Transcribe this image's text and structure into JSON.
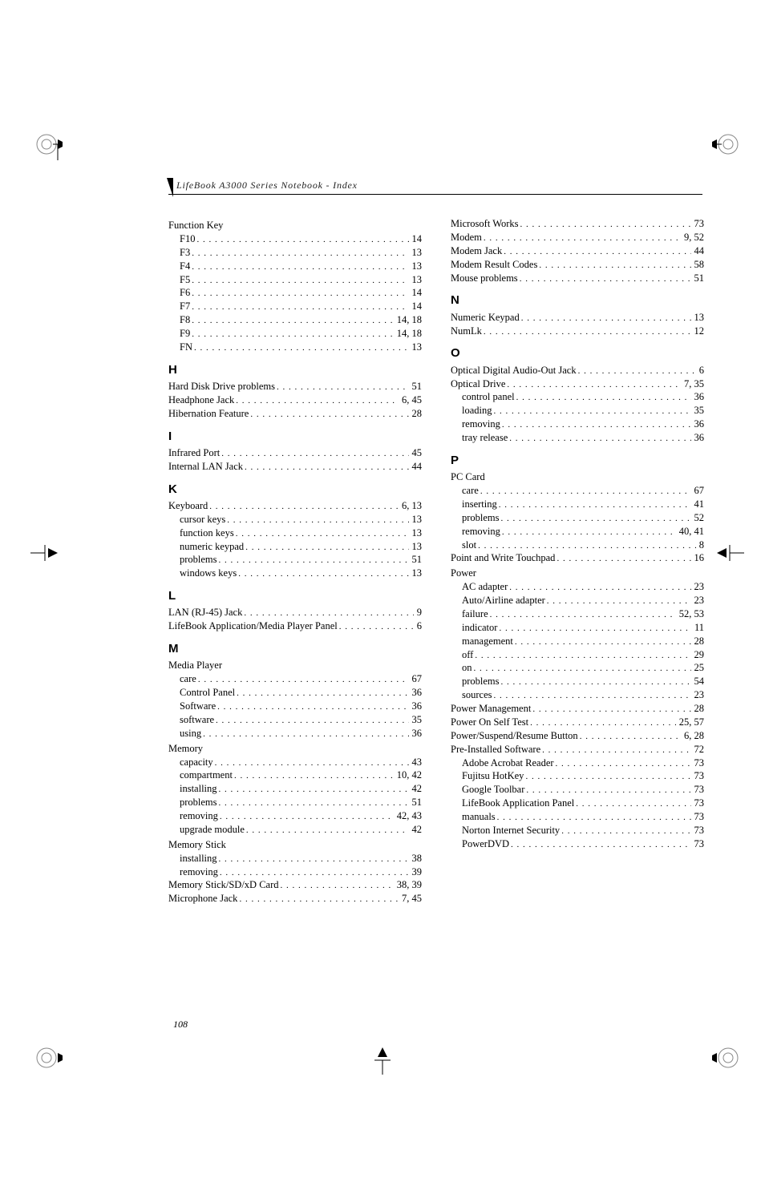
{
  "running_head": "LifeBook A3000 Series Notebook - Index",
  "page_number": "108",
  "left_col": [
    {
      "type": "group",
      "label": "Function Key"
    },
    {
      "type": "sub",
      "label": "F10",
      "page": "14"
    },
    {
      "type": "sub",
      "label": "F3",
      "page": "13"
    },
    {
      "type": "sub",
      "label": "F4",
      "page": "13"
    },
    {
      "type": "sub",
      "label": "F5",
      "page": "13"
    },
    {
      "type": "sub",
      "label": "F6",
      "page": "14"
    },
    {
      "type": "sub",
      "label": "F7",
      "page": "14"
    },
    {
      "type": "sub",
      "label": "F8",
      "page": "14, 18"
    },
    {
      "type": "sub",
      "label": "F9",
      "page": "14, 18"
    },
    {
      "type": "sub",
      "label": "FN",
      "page": "13"
    },
    {
      "type": "section",
      "label": "H"
    },
    {
      "type": "entry",
      "label": "Hard Disk Drive problems",
      "page": "51"
    },
    {
      "type": "entry",
      "label": "Headphone Jack",
      "page": "6, 45"
    },
    {
      "type": "entry",
      "label": "Hibernation Feature",
      "page": "28"
    },
    {
      "type": "section",
      "label": "I"
    },
    {
      "type": "entry",
      "label": "Infrared Port",
      "page": "45"
    },
    {
      "type": "entry",
      "label": "Internal LAN Jack",
      "page": "44"
    },
    {
      "type": "section",
      "label": "K"
    },
    {
      "type": "entry",
      "label": "Keyboard",
      "page": "6, 13"
    },
    {
      "type": "sub",
      "label": "cursor keys",
      "page": "13"
    },
    {
      "type": "sub",
      "label": "function keys",
      "page": "13"
    },
    {
      "type": "sub",
      "label": "numeric keypad",
      "page": "13"
    },
    {
      "type": "sub",
      "label": "problems",
      "page": "51"
    },
    {
      "type": "sub",
      "label": "windows keys",
      "page": "13"
    },
    {
      "type": "section",
      "label": "L"
    },
    {
      "type": "entry",
      "label": "LAN (RJ-45) Jack",
      "page": "9"
    },
    {
      "type": "entry",
      "label": "LifeBook Application/Media Player Panel",
      "page": "6"
    },
    {
      "type": "section",
      "label": "M"
    },
    {
      "type": "group",
      "label": "Media Player"
    },
    {
      "type": "sub",
      "label": "care",
      "page": "67"
    },
    {
      "type": "sub",
      "label": "Control Panel",
      "page": "36"
    },
    {
      "type": "sub",
      "label": "Software",
      "page": "36"
    },
    {
      "type": "sub",
      "label": "software",
      "page": "35"
    },
    {
      "type": "sub",
      "label": "using",
      "page": "36"
    },
    {
      "type": "group",
      "label": "Memory"
    },
    {
      "type": "sub",
      "label": "capacity",
      "page": "43"
    },
    {
      "type": "sub",
      "label": "compartment",
      "page": "10, 42"
    },
    {
      "type": "sub",
      "label": "installing",
      "page": "42"
    },
    {
      "type": "sub",
      "label": "problems",
      "page": "51"
    },
    {
      "type": "sub",
      "label": "removing",
      "page": "42, 43"
    },
    {
      "type": "sub",
      "label": "upgrade module",
      "page": "42"
    },
    {
      "type": "group",
      "label": "Memory Stick"
    },
    {
      "type": "sub",
      "label": "installing",
      "page": "38"
    },
    {
      "type": "sub",
      "label": "removing",
      "page": "39"
    },
    {
      "type": "entry",
      "label": "Memory Stick/SD/xD Card",
      "page": "38, 39"
    },
    {
      "type": "entry",
      "label": "Microphone Jack",
      "page": "7, 45"
    }
  ],
  "right_col": [
    {
      "type": "entry",
      "label": "Microsoft Works",
      "page": "73"
    },
    {
      "type": "entry",
      "label": "Modem",
      "page": "9, 52"
    },
    {
      "type": "entry",
      "label": "Modem Jack",
      "page": "44"
    },
    {
      "type": "entry",
      "label": "Modem Result Codes",
      "page": "58"
    },
    {
      "type": "entry",
      "label": "Mouse problems",
      "page": "51"
    },
    {
      "type": "section",
      "label": "N"
    },
    {
      "type": "entry",
      "label": "Numeric Keypad",
      "page": "13"
    },
    {
      "type": "entry",
      "label": "NumLk",
      "page": "12"
    },
    {
      "type": "section",
      "label": "O"
    },
    {
      "type": "entry",
      "label": "Optical Digital Audio-Out Jack",
      "page": "6"
    },
    {
      "type": "entry",
      "label": "Optical Drive",
      "page": "7, 35"
    },
    {
      "type": "sub",
      "label": "control panel",
      "page": "36"
    },
    {
      "type": "sub",
      "label": "loading",
      "page": "35"
    },
    {
      "type": "sub",
      "label": "removing",
      "page": "36"
    },
    {
      "type": "sub",
      "label": "tray release",
      "page": "36"
    },
    {
      "type": "section",
      "label": "P"
    },
    {
      "type": "group",
      "label": "PC Card"
    },
    {
      "type": "sub",
      "label": "care",
      "page": "67"
    },
    {
      "type": "sub",
      "label": "inserting",
      "page": "41"
    },
    {
      "type": "sub",
      "label": "problems",
      "page": "52"
    },
    {
      "type": "sub",
      "label": "removing",
      "page": "40, 41"
    },
    {
      "type": "sub",
      "label": "slot",
      "page": "8"
    },
    {
      "type": "entry",
      "label": "Point and Write Touchpad",
      "page": "16"
    },
    {
      "type": "group",
      "label": "Power"
    },
    {
      "type": "sub",
      "label": "AC adapter",
      "page": "23"
    },
    {
      "type": "sub",
      "label": "Auto/Airline adapter",
      "page": "23"
    },
    {
      "type": "sub",
      "label": "failure",
      "page": "52, 53"
    },
    {
      "type": "sub",
      "label": "indicator",
      "page": "11"
    },
    {
      "type": "sub",
      "label": "management",
      "page": "28"
    },
    {
      "type": "sub",
      "label": "off",
      "page": "29"
    },
    {
      "type": "sub",
      "label": "on",
      "page": "25"
    },
    {
      "type": "sub",
      "label": "problems",
      "page": "54"
    },
    {
      "type": "sub",
      "label": "sources",
      "page": "23"
    },
    {
      "type": "entry",
      "label": "Power Management",
      "page": "28"
    },
    {
      "type": "entry",
      "label": "Power On Self Test",
      "page": "25, 57"
    },
    {
      "type": "entry",
      "label": "Power/Suspend/Resume Button",
      "page": "6, 28"
    },
    {
      "type": "entry",
      "label": "Pre-Installed Software",
      "page": "72"
    },
    {
      "type": "sub",
      "label": "Adobe Acrobat Reader",
      "page": "73"
    },
    {
      "type": "sub",
      "label": "Fujitsu HotKey",
      "page": "73"
    },
    {
      "type": "sub",
      "label": "Google Toolbar",
      "page": "73"
    },
    {
      "type": "sub",
      "label": "LifeBook Application Panel",
      "page": "73"
    },
    {
      "type": "sub",
      "label": "manuals",
      "page": "73"
    },
    {
      "type": "sub",
      "label": "Norton Internet Security",
      "page": "73"
    },
    {
      "type": "sub",
      "label": "PowerDVD",
      "page": "73"
    }
  ]
}
